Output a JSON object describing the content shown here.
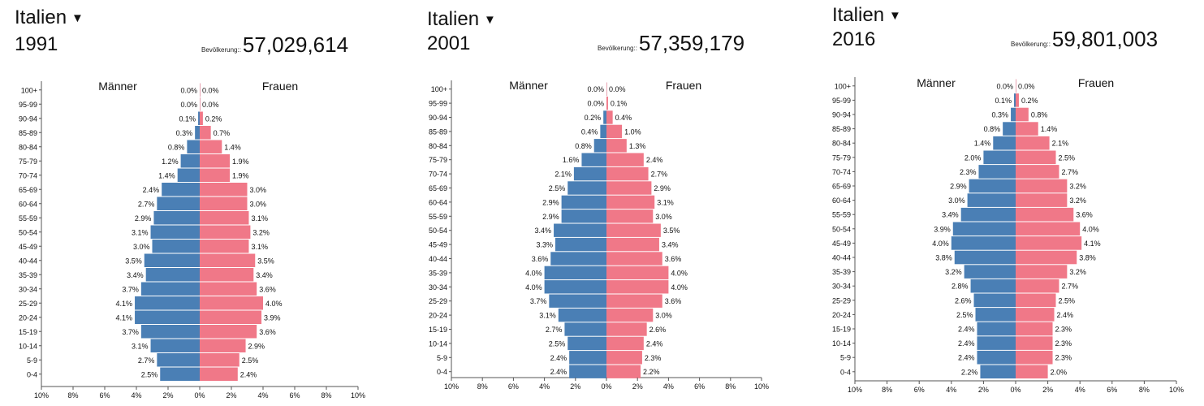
{
  "colors": {
    "male": "#4a7fb5",
    "female": "#f07888",
    "axis": "#555555"
  },
  "pop_label": "Bevölkerung::",
  "dropdown_icon": "caret-down-icon",
  "chart_data": [
    {
      "type": "bar",
      "country": "Italien",
      "year": "1991",
      "population": "57,029,614",
      "male_label": "Männer",
      "female_label": "Frauen",
      "categories": [
        "100+",
        "95-99",
        "90-94",
        "85-89",
        "80-84",
        "75-79",
        "70-74",
        "65-69",
        "60-64",
        "55-59",
        "50-54",
        "45-49",
        "40-44",
        "35-39",
        "30-34",
        "25-29",
        "20-24",
        "15-19",
        "10-14",
        "5-9",
        "0-4"
      ],
      "series": [
        {
          "name": "Männer",
          "values": [
            0.0,
            0.0,
            0.1,
            0.3,
            0.8,
            1.2,
            1.4,
            2.4,
            2.7,
            2.9,
            3.1,
            3.0,
            3.5,
            3.4,
            3.7,
            4.1,
            4.1,
            3.7,
            3.1,
            2.7,
            2.5
          ]
        },
        {
          "name": "Frauen",
          "values": [
            0.0,
            0.0,
            0.2,
            0.7,
            1.4,
            1.9,
            1.9,
            3.0,
            3.0,
            3.1,
            3.2,
            3.1,
            3.5,
            3.4,
            3.6,
            4.0,
            3.9,
            3.6,
            2.9,
            2.5,
            2.4
          ]
        }
      ],
      "x_ticks": [
        "10%",
        "8%",
        "6%",
        "4%",
        "2%",
        "0%",
        "2%",
        "4%",
        "6%",
        "8%",
        "10%"
      ],
      "xlim": [
        -10,
        10
      ]
    },
    {
      "type": "bar",
      "country": "Italien",
      "year": "2001",
      "population": "57,359,179",
      "male_label": "Männer",
      "female_label": "Frauen",
      "categories": [
        "100+",
        "95-99",
        "90-94",
        "85-89",
        "80-84",
        "75-79",
        "70-74",
        "65-69",
        "60-64",
        "55-59",
        "50-54",
        "45-49",
        "40-44",
        "35-39",
        "30-34",
        "25-29",
        "20-24",
        "15-19",
        "10-14",
        "5-9",
        "0-4"
      ],
      "series": [
        {
          "name": "Männer",
          "values": [
            0.0,
            0.0,
            0.2,
            0.4,
            0.8,
            1.6,
            2.1,
            2.5,
            2.9,
            2.9,
            3.4,
            3.3,
            3.6,
            4.0,
            4.0,
            3.7,
            3.1,
            2.7,
            2.5,
            2.4,
            2.4
          ]
        },
        {
          "name": "Frauen",
          "values": [
            0.0,
            0.1,
            0.4,
            1.0,
            1.3,
            2.4,
            2.7,
            2.9,
            3.1,
            3.0,
            3.5,
            3.4,
            3.6,
            4.0,
            4.0,
            3.6,
            3.0,
            2.6,
            2.4,
            2.3,
            2.2
          ]
        }
      ],
      "x_ticks": [
        "10%",
        "8%",
        "6%",
        "4%",
        "2%",
        "0%",
        "2%",
        "4%",
        "6%",
        "8%",
        "10%"
      ],
      "xlim": [
        -10,
        10
      ]
    },
    {
      "type": "bar",
      "country": "Italien",
      "year": "2016",
      "population": "59,801,003",
      "male_label": "Männer",
      "female_label": "Frauen",
      "categories": [
        "100+",
        "95-99",
        "90-94",
        "85-89",
        "80-84",
        "75-79",
        "70-74",
        "65-69",
        "60-64",
        "55-59",
        "50-54",
        "45-49",
        "40-44",
        "35-39",
        "30-34",
        "25-29",
        "20-24",
        "15-19",
        "10-14",
        "5-9",
        "0-4"
      ],
      "series": [
        {
          "name": "Männer",
          "values": [
            0.0,
            0.1,
            0.3,
            0.8,
            1.4,
            2.0,
            2.3,
            2.9,
            3.0,
            3.4,
            3.9,
            4.0,
            3.8,
            3.2,
            2.8,
            2.6,
            2.5,
            2.4,
            2.4,
            2.4,
            2.2
          ]
        },
        {
          "name": "Frauen",
          "values": [
            0.0,
            0.2,
            0.8,
            1.4,
            2.1,
            2.5,
            2.7,
            3.2,
            3.2,
            3.6,
            4.0,
            4.1,
            3.8,
            3.2,
            2.7,
            2.5,
            2.4,
            2.3,
            2.3,
            2.3,
            2.0
          ]
        }
      ],
      "x_ticks": [
        "10%",
        "8%",
        "6%",
        "4%",
        "2%",
        "0%",
        "2%",
        "4%",
        "6%",
        "8%",
        "10%"
      ],
      "xlim": [
        -10,
        10
      ]
    }
  ]
}
